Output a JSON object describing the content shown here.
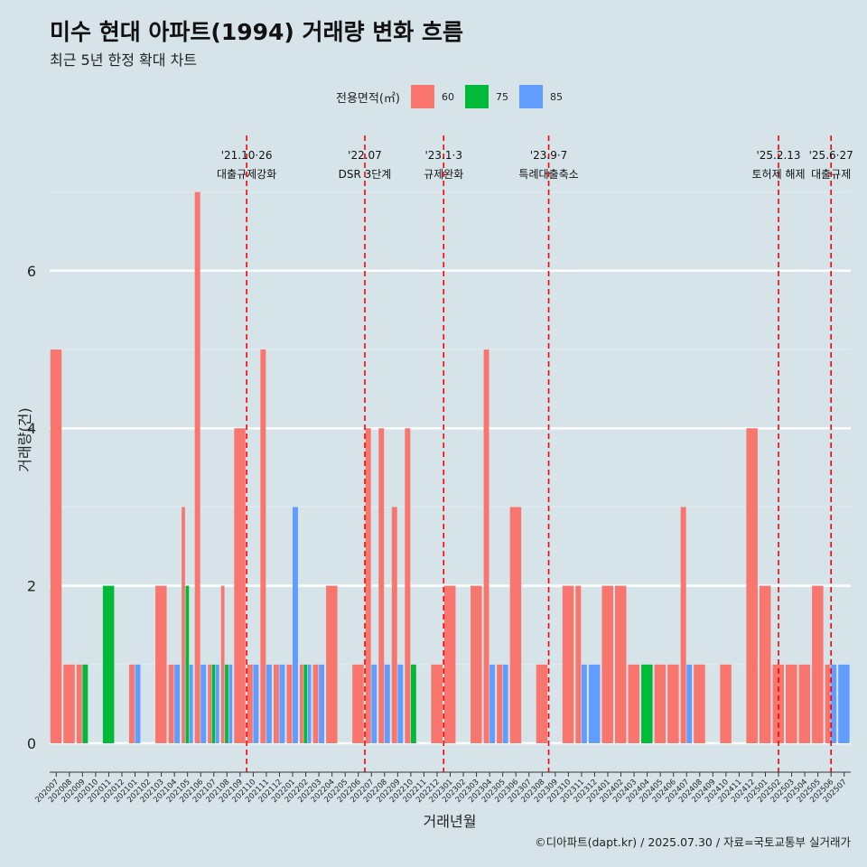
{
  "title": "미수 현대 아파트(1994) 거래량 변화 흐름",
  "subtitle": "최근 5년 한정 확대 차트",
  "caption": "©디아파트(dapt.kr) / 2025.07.30 / 자료=국토교통부 실거래가",
  "legend": {
    "title": "전용면적(㎡)",
    "items": [
      {
        "label": "60",
        "color": "#f8766d"
      },
      {
        "label": "75",
        "color": "#00ba38"
      },
      {
        "label": "85",
        "color": "#619cff"
      }
    ]
  },
  "chart_data": {
    "type": "bar",
    "xlabel": "거래년월",
    "ylabel": "거래량(건)",
    "ylim": [
      0,
      7.5
    ],
    "yticks": [
      0,
      2,
      4,
      6
    ],
    "grid": true,
    "categories": [
      "202007",
      "202008",
      "202009",
      "202010",
      "202011",
      "202012",
      "202101",
      "202102",
      "202103",
      "202104",
      "202105",
      "202106",
      "202107",
      "202108",
      "202109",
      "202110",
      "202111",
      "202112",
      "202201",
      "202202",
      "202203",
      "202204",
      "202205",
      "202206",
      "202207",
      "202208",
      "202209",
      "202210",
      "202211",
      "202212",
      "202301",
      "202302",
      "202303",
      "202304",
      "202305",
      "202306",
      "202307",
      "202308",
      "202309",
      "202310",
      "202311",
      "202312",
      "202401",
      "202402",
      "202403",
      "202404",
      "202405",
      "202406",
      "202407",
      "202408",
      "202409",
      "202410",
      "202411",
      "202412",
      "202501",
      "202502",
      "202503",
      "202504",
      "202505",
      "202506",
      "202507"
    ],
    "series": [
      {
        "name": "60",
        "color": "#f8766d",
        "values": [
          5,
          1,
          1,
          0,
          0,
          0,
          1,
          0,
          2,
          1,
          3,
          7,
          1,
          2,
          4,
          1,
          5,
          1,
          1,
          1,
          1,
          2,
          0,
          1,
          4,
          4,
          3,
          4,
          0,
          1,
          2,
          0,
          2,
          5,
          1,
          3,
          0,
          1,
          0,
          2,
          2,
          0,
          2,
          2,
          1,
          0,
          1,
          1,
          3,
          1,
          0,
          1,
          0,
          4,
          2,
          1,
          1,
          1,
          2,
          1,
          0
        ]
      },
      {
        "name": "75",
        "color": "#00ba38",
        "values": [
          0,
          0,
          1,
          0,
          2,
          0,
          0,
          0,
          0,
          0,
          2,
          0,
          1,
          1,
          0,
          0,
          0,
          0,
          0,
          1,
          0,
          0,
          0,
          0,
          0,
          0,
          0,
          1,
          0,
          0,
          0,
          0,
          0,
          0,
          0,
          0,
          0,
          0,
          0,
          0,
          0,
          0,
          0,
          0,
          0,
          1,
          0,
          0,
          0,
          0,
          0,
          0,
          0,
          0,
          0,
          0,
          0,
          0,
          0,
          0,
          0
        ]
      },
      {
        "name": "85",
        "color": "#619cff",
        "values": [
          0,
          0,
          0,
          0,
          0,
          0,
          1,
          0,
          0,
          1,
          1,
          1,
          1,
          1,
          0,
          1,
          1,
          1,
          3,
          1,
          1,
          0,
          0,
          0,
          1,
          1,
          1,
          0,
          0,
          0,
          0,
          0,
          0,
          1,
          1,
          0,
          0,
          0,
          0,
          0,
          1,
          1,
          0,
          0,
          0,
          0,
          0,
          0,
          1,
          0,
          0,
          0,
          0,
          0,
          0,
          0,
          0,
          0,
          0,
          1,
          1
        ]
      }
    ],
    "annotations": [
      {
        "pos": 15,
        "date": "'21.10·26",
        "text": "대출규제강화"
      },
      {
        "pos": 24,
        "date": "'22.07",
        "text": "DSR 3단계"
      },
      {
        "pos": 30,
        "date": "'23.1·3",
        "text": "규제완화"
      },
      {
        "pos": 38,
        "date": "'23.9·7",
        "text": "특례대출축소"
      },
      {
        "pos": 55.5,
        "date": "'25.2.13",
        "text": "토허제 해제"
      },
      {
        "pos": 59.5,
        "date": "'25.6·27",
        "text": "대출규제"
      }
    ]
  }
}
